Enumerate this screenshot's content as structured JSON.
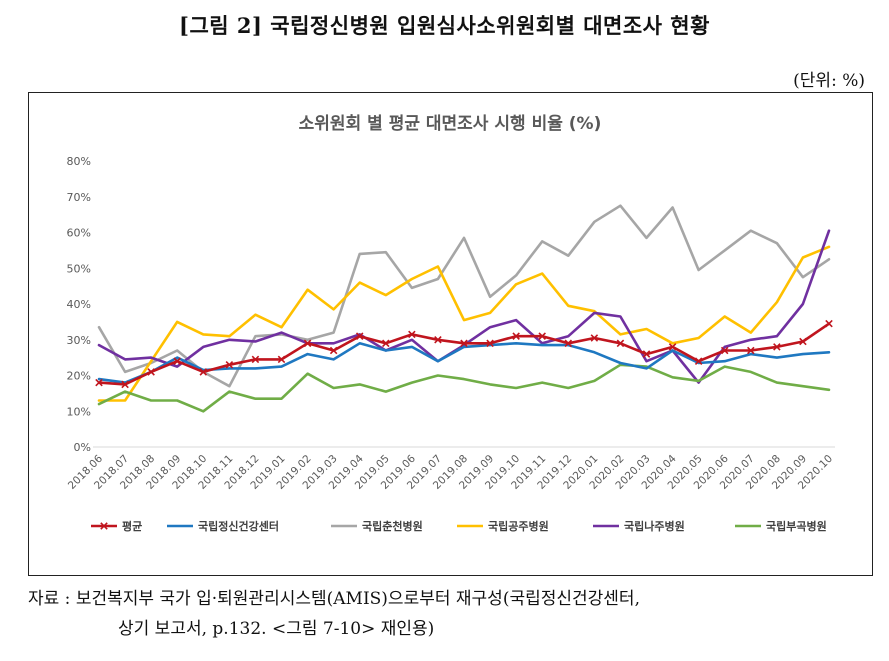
{
  "figure": {
    "title": "[그림 2] 국립정신병원 입원심사소위원회별 대면조사 현황",
    "unit": "(단위: %)",
    "source_line1": "자료 : 보건복지부 국가 입·퇴원관리시스템(AMIS)으로부터 재구성(국립정신건강센터,",
    "source_line2": "상기 보고서, p.132. <그림 7-10> 재인용)"
  },
  "chart_data": {
    "type": "line",
    "title": "소위원회 별 평균 대면조사 시행 비율 (%)",
    "xlabel": "",
    "ylabel": "",
    "ylim": [
      0,
      80
    ],
    "yticks": [
      "0%",
      "10%",
      "20%",
      "30%",
      "40%",
      "50%",
      "60%",
      "70%",
      "80%"
    ],
    "grid": false,
    "legend_position": "bottom",
    "categories": [
      "2018.06",
      "2018.07",
      "2018.08",
      "2018.09",
      "2018.10",
      "2018.11",
      "2018.12",
      "2019.01",
      "2019.02",
      "2019.03",
      "2019.04",
      "2019.05",
      "2019.06",
      "2019.07",
      "2019.08",
      "2019.09",
      "2019.10",
      "2019.11",
      "2019.12",
      "2020.01",
      "2020.02",
      "2020.03",
      "2020.04",
      "2020.05",
      "2020.06",
      "2020.07",
      "2020.08",
      "2020.09",
      "2020.10"
    ],
    "series": [
      {
        "name": "평균",
        "color": "#c0151e",
        "marker": "x",
        "values": [
          18,
          17.5,
          21,
          24,
          21,
          23,
          24.5,
          24.5,
          29,
          27,
          31,
          29,
          31.5,
          30,
          29,
          29,
          31,
          31,
          29,
          30.5,
          29,
          26,
          28,
          24,
          27,
          27,
          28,
          29.5,
          34.5
        ]
      },
      {
        "name": "국립정신건강센터",
        "color": "#1f78c1",
        "marker": "none",
        "values": [
          19,
          18,
          21,
          25,
          21.5,
          22,
          22,
          22.5,
          26,
          24.5,
          29,
          27,
          28,
          24,
          28,
          28.5,
          29,
          28.5,
          28.5,
          26.5,
          23.5,
          22,
          27,
          23.5,
          24,
          26,
          25,
          26,
          26.5
        ]
      },
      {
        "name": "국립춘천병원",
        "color": "#a6a6a6",
        "marker": "none",
        "values": [
          33.5,
          21,
          23.5,
          27,
          21,
          17,
          31,
          31.5,
          30,
          32,
          54,
          54.5,
          44.5,
          47,
          58.5,
          42,
          48,
          57.5,
          53.5,
          63,
          67.5,
          58.5,
          67,
          49.5,
          55,
          60.5,
          57,
          47.5,
          52.5
        ]
      },
      {
        "name": "국립공주병원",
        "color": "#ffc000",
        "marker": "none",
        "values": [
          13,
          13,
          24,
          35,
          31.5,
          31,
          37,
          33.5,
          44,
          38.5,
          46,
          42.5,
          47,
          50.5,
          35.5,
          37.5,
          45.5,
          48.5,
          39.5,
          38,
          31.5,
          33,
          29,
          30.5,
          36.5,
          32,
          40.5,
          53,
          56
        ]
      },
      {
        "name": "국립나주병원",
        "color": "#7030a0",
        "marker": "none",
        "values": [
          28.5,
          24.5,
          25,
          22.5,
          28,
          30,
          29.5,
          32,
          29,
          29,
          31.5,
          27,
          30,
          24,
          28.5,
          33.5,
          35.5,
          29,
          31,
          37.5,
          36.5,
          24,
          27,
          18,
          28,
          30,
          31,
          40,
          60.5
        ]
      },
      {
        "name": "국립부곡병원",
        "color": "#70ad47",
        "marker": "none",
        "values": [
          12,
          15.5,
          13,
          13,
          10,
          15.5,
          13.5,
          13.5,
          20.5,
          16.5,
          17.5,
          15.5,
          18,
          20,
          19,
          17.5,
          16.5,
          18,
          16.5,
          18.5,
          23,
          22.5,
          19.5,
          18.5,
          22.5,
          21,
          18,
          17,
          16
        ]
      }
    ]
  }
}
